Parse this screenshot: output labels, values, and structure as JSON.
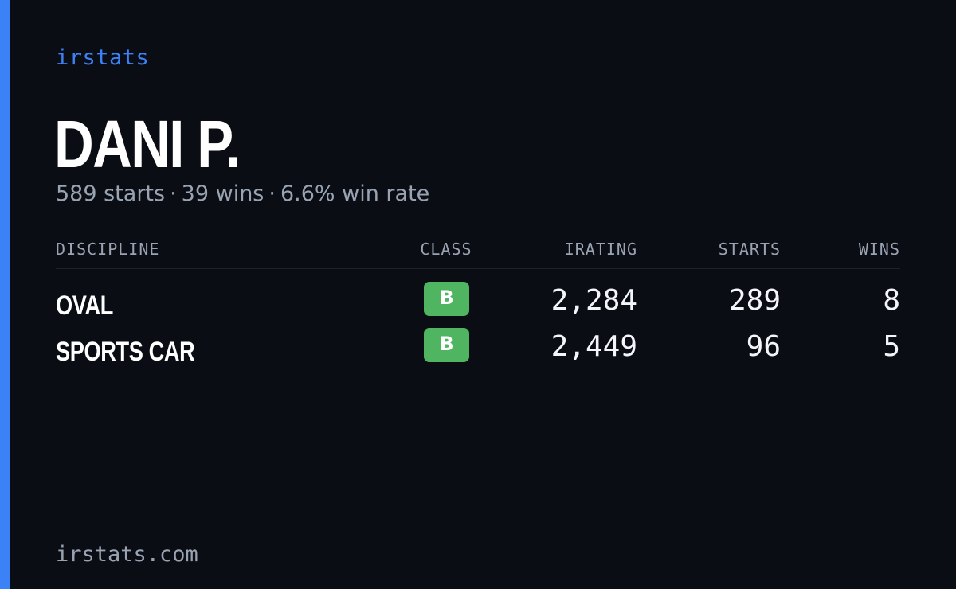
{
  "brand": "irstats",
  "driver": {
    "name": "DANI P.",
    "starts": "589 starts",
    "wins": "39 wins",
    "win_rate": "6.6% win rate",
    "separator": "·"
  },
  "table": {
    "headers": {
      "discipline": "DISCIPLINE",
      "class": "CLASS",
      "irating": "IRATING",
      "starts": "STARTS",
      "wins": "WINS"
    },
    "rows": [
      {
        "discipline": "OVAL",
        "class": "B",
        "irating": "2,284",
        "starts": "289",
        "wins": "8"
      },
      {
        "discipline": "SPORTS CAR",
        "class": "B",
        "irating": "2,449",
        "starts": "96",
        "wins": "5"
      }
    ]
  },
  "footer": {
    "domain": "irstats.com"
  },
  "colors": {
    "accent": "#3b82f6",
    "background": "#0a0d14",
    "class_b_badge": "#4fb560",
    "muted_text": "#9aa3b2"
  }
}
